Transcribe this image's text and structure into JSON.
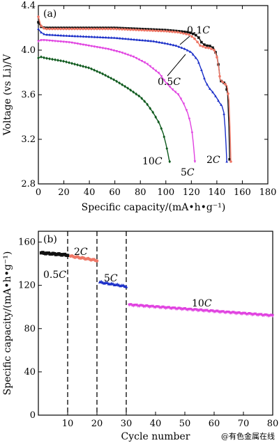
{
  "chart_data": [
    {
      "type": "line",
      "panel_label": "(a)",
      "xlabel": "Specific capacity/(mA•h•g⁻¹)",
      "ylabel": "Voltage (vs Li)/V",
      "xlim": [
        0,
        180
      ],
      "ylim": [
        2.8,
        4.4
      ],
      "xticks": [
        0,
        20,
        40,
        60,
        80,
        100,
        120,
        140,
        160,
        180
      ],
      "yticks": [
        2.8,
        3.2,
        3.6,
        4.0,
        4.4
      ],
      "series": [
        {
          "name": "0.1C",
          "label_num": "0.1",
          "color": "#111111",
          "marker": "square",
          "x": [
            0,
            2,
            5,
            20,
            40,
            60,
            80,
            100,
            110,
            118,
            123,
            126,
            128,
            130,
            132,
            134,
            136,
            138,
            140,
            141.5,
            142.5,
            143.5,
            145,
            147,
            148.5,
            149.5,
            150
          ],
          "y": [
            4.25,
            4.21,
            4.2,
            4.2,
            4.2,
            4.2,
            4.19,
            4.18,
            4.17,
            4.16,
            4.14,
            4.11,
            4.07,
            4.05,
            4.04,
            4.04,
            4.03,
            4.01,
            3.95,
            3.85,
            3.74,
            3.72,
            3.71,
            3.7,
            3.6,
            3.3,
            3.02
          ]
        },
        {
          "name": "0.5C",
          "label_num": "0.5",
          "color": "#ee7766",
          "marker": "circle",
          "x": [
            0,
            2,
            5,
            20,
            40,
            60,
            80,
            100,
            110,
            118,
            122,
            125,
            127,
            130,
            132,
            134,
            136,
            138,
            140,
            141.5,
            142.5,
            144,
            146,
            148,
            149.5,
            150.5,
            151
          ],
          "y": [
            4.3,
            4.22,
            4.19,
            4.19,
            4.19,
            4.19,
            4.18,
            4.17,
            4.16,
            4.14,
            4.11,
            4.07,
            4.04,
            4.03,
            4.02,
            4.02,
            4.01,
            4.0,
            3.94,
            3.84,
            3.74,
            3.72,
            3.7,
            3.68,
            3.55,
            3.25,
            3.0
          ]
        },
        {
          "name": "2C",
          "label_num": "2",
          "color": "#1a2ec8",
          "marker": "triangle",
          "x": [
            0,
            2,
            5,
            20,
            40,
            60,
            80,
            90,
            100,
            108,
            115,
            120,
            125,
            128,
            131,
            134,
            137,
            140,
            142,
            144,
            145.5,
            146.5,
            147.2,
            147.8
          ],
          "y": [
            4.19,
            4.16,
            4.14,
            4.13,
            4.12,
            4.11,
            4.09,
            4.08,
            4.06,
            4.04,
            4.01,
            3.98,
            3.91,
            3.82,
            3.72,
            3.66,
            3.62,
            3.57,
            3.53,
            3.5,
            3.44,
            3.3,
            3.15,
            3.0
          ]
        },
        {
          "name": "5C",
          "label_num": "5",
          "color": "#e040e0",
          "marker": "triangle-down",
          "x": [
            0,
            2,
            5,
            15,
            25,
            35,
            45,
            55,
            65,
            75,
            85,
            95,
            100,
            105,
            110,
            114,
            117,
            119,
            120.5,
            121.5,
            122.2,
            122.8
          ],
          "y": [
            4.08,
            4.09,
            4.09,
            4.08,
            4.07,
            4.05,
            4.03,
            4.01,
            3.98,
            3.94,
            3.88,
            3.79,
            3.71,
            3.65,
            3.6,
            3.52,
            3.44,
            3.36,
            3.27,
            3.17,
            3.08,
            3.0
          ]
        },
        {
          "name": "10C",
          "label_num": "10",
          "color": "#0f5a1e",
          "marker": "diamond",
          "x": [
            0,
            2,
            5,
            10,
            20,
            30,
            40,
            50,
            60,
            70,
            80,
            85,
            90,
            95,
            98,
            100,
            101.5,
            102.5,
            103
          ],
          "y": [
            3.93,
            3.94,
            3.93,
            3.92,
            3.9,
            3.87,
            3.84,
            3.79,
            3.73,
            3.66,
            3.58,
            3.52,
            3.44,
            3.34,
            3.25,
            3.16,
            3.08,
            3.02,
            3.0
          ]
        }
      ],
      "annotations": [
        {
          "num": "0.1",
          "series": "0.1C"
        },
        {
          "num": "0.5",
          "series": "0.5C"
        },
        {
          "num": "2",
          "series": "2C"
        },
        {
          "num": "5",
          "series": "5C"
        },
        {
          "num": "10",
          "series": "10C"
        }
      ]
    },
    {
      "type": "scatter",
      "panel_label": "(b)",
      "xlabel": "Cycle number",
      "ylabel": "Specific capacity/(mA•h•g⁻¹)",
      "xlim": [
        0,
        80
      ],
      "ylim": [
        0,
        170
      ],
      "xticks": [
        10,
        20,
        30,
        40,
        50,
        60,
        70,
        80
      ],
      "yticks": [
        0,
        40,
        80,
        120,
        160
      ],
      "dividers_at_cycle": [
        10,
        20,
        30
      ],
      "segments": [
        {
          "name": "0.5C",
          "label_num": "0.5",
          "color": "#111111",
          "marker": "square",
          "cycles": [
            1,
            10
          ],
          "start": 150,
          "end": 148
        },
        {
          "name": "2C",
          "label_num": "2",
          "color": "#ee7766",
          "marker": "circle",
          "cycles": [
            11,
            20
          ],
          "start": 147,
          "end": 143
        },
        {
          "name": "5C",
          "label_num": "5",
          "color": "#1a2ec8",
          "marker": "triangle",
          "cycles": [
            21,
            30
          ],
          "start": 123,
          "end": 119
        },
        {
          "name": "10C",
          "label_num": "10",
          "color": "#e040e0",
          "marker": "triangle-down",
          "cycles": [
            31,
            80
          ],
          "start": 102,
          "end": 92
        }
      ]
    }
  ],
  "watermark": "@有色金属在线"
}
